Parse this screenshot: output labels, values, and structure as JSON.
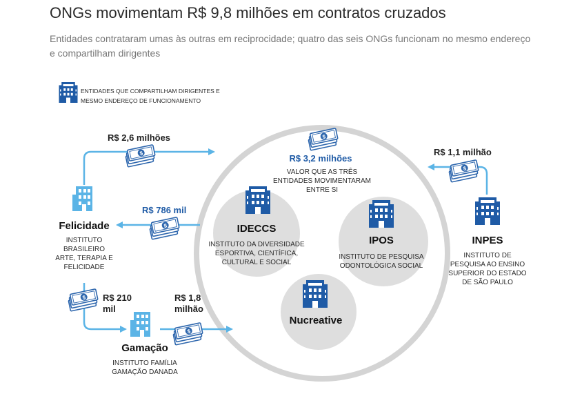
{
  "header": {
    "title": "ONGs movimentam R$ 9,8 milhões em contratos cruzados",
    "subtitle": "Entidades contrataram umas às outras em reciprocidade; quatro das seis ONGs funcionam no mesmo endereço e compartilham dirigentes"
  },
  "legend": {
    "text": "ENTIDADES QUE COMPARTILHAM DIRIGENTES E MESMO ENDEREÇO DE FUNCIONAMENTO",
    "icon": "building-shared-icon"
  },
  "flows": {
    "felicidade_to_circle": "R$ 2,6 milhões",
    "circle_to_felicidade": "R$ 786 mil",
    "felicidade_to_gamacao": "R$ 210 mil",
    "gamacao_to_circle": "R$ 1,8 milhão",
    "inpes_to_circle": "R$ 1,1 milhão",
    "within_circle": "R$ 3,2 milhões",
    "within_circle_desc": "VALOR QUE AS TRÊS ENTIDADES MOVIMENTARAM ENTRE SI"
  },
  "entities": {
    "felicidade": {
      "name": "Felicidade",
      "desc": "INSTITUTO BRASILEIRO ARTE, TERAPIA E FELICIDADE"
    },
    "gamacao": {
      "name": "Gamação",
      "desc": "INSTITUTO FAMÍLIA GAMAÇÃO DANADA"
    },
    "ideccs": {
      "name": "IDECCS",
      "desc": "INSTITUTO DA DIVERSIDADE ESPORTIVA, CIENTÍFICA, CULTURAL E SOCIAL"
    },
    "ipos": {
      "name": "IPOS",
      "desc": "INSTITUTO DE PESQUISA ODONTOLÓGICA SOCIAL"
    },
    "nucreative": {
      "name": "Nucreative",
      "desc": ""
    },
    "inpes": {
      "name": "INPES",
      "desc": "INSTITUTO DE PESQUISA AO ENSINO SUPERIOR DO ESTADO DE SÃO PAULO"
    }
  },
  "colors": {
    "flow_line": "#5bb4e6",
    "building_shared": "#1f5ba6",
    "building_light": "#5bb4e6",
    "circle_bg": "#ffffff",
    "circle_stroke": "#d4d4d4",
    "entity_bubble": "#dedede",
    "amount_blue": "#1f5ba6"
  }
}
